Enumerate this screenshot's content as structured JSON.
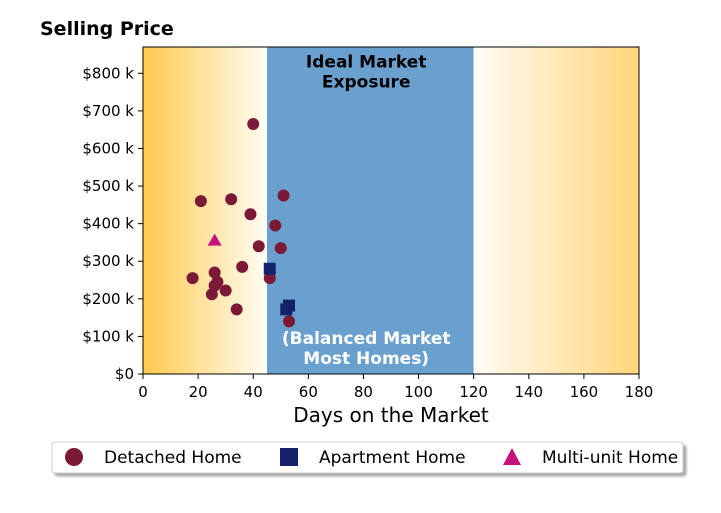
{
  "chart_data": {
    "type": "scatter",
    "title": "Selling Price",
    "xlabel": "Days on the Market",
    "ylabel": "",
    "xlim": [
      0,
      180
    ],
    "ylim": [
      0,
      870000
    ],
    "x_ticks": [
      0,
      20,
      40,
      60,
      80,
      100,
      120,
      140,
      160,
      180
    ],
    "x_tick_labels": [
      "0",
      "20",
      "40",
      "60",
      "80",
      "100",
      "120",
      "140",
      "160",
      "180"
    ],
    "y_ticks": [
      0,
      100000,
      200000,
      300000,
      400000,
      500000,
      600000,
      700000,
      800000
    ],
    "y_tick_labels": [
      "$0",
      "$100 k",
      "$200 k",
      "$300 k",
      "$400 k",
      "$500 k",
      "$600 k",
      "$700 k",
      "$800 k"
    ],
    "grid": false,
    "background_bands": [
      {
        "x_range": [
          0,
          45
        ],
        "style": "gradient",
        "color_from": "#ffc94d",
        "color_to": "#fffdf5"
      },
      {
        "x_range": [
          45,
          120
        ],
        "style": "solid",
        "color": "#6aa0cd"
      },
      {
        "x_range": [
          120,
          180
        ],
        "style": "gradient",
        "color_from": "#fffdf5",
        "color_to": "#ffd57a"
      }
    ],
    "annotations": [
      {
        "line1": "Ideal Market",
        "line2": "Exposure",
        "x": 81,
        "y": 815000,
        "color": "#000000"
      },
      {
        "line1": "(Balanced Market",
        "line2": "Most Homes)",
        "x": 81,
        "y": 80000,
        "color": "#ffffff"
      }
    ],
    "series": [
      {
        "name": "Detached Home",
        "marker": "circle",
        "color": "#7b1a37",
        "points": [
          {
            "x": 40,
            "y": 665000
          },
          {
            "x": 51,
            "y": 475000
          },
          {
            "x": 21,
            "y": 460000
          },
          {
            "x": 32,
            "y": 465000
          },
          {
            "x": 39,
            "y": 425000
          },
          {
            "x": 48,
            "y": 395000
          },
          {
            "x": 42,
            "y": 340000
          },
          {
            "x": 50,
            "y": 335000
          },
          {
            "x": 36,
            "y": 285000
          },
          {
            "x": 26,
            "y": 270000
          },
          {
            "x": 18,
            "y": 255000
          },
          {
            "x": 46,
            "y": 255000
          },
          {
            "x": 27,
            "y": 245000
          },
          {
            "x": 26,
            "y": 235000
          },
          {
            "x": 30,
            "y": 222000
          },
          {
            "x": 25,
            "y": 212000
          },
          {
            "x": 34,
            "y": 172000
          },
          {
            "x": 53,
            "y": 140000
          }
        ]
      },
      {
        "name": "Apartment Home",
        "marker": "square",
        "color": "#14226b",
        "points": [
          {
            "x": 46,
            "y": 280000
          },
          {
            "x": 53,
            "y": 182000
          },
          {
            "x": 52,
            "y": 172000
          }
        ]
      },
      {
        "name": "Multi-unit Home",
        "marker": "triangle",
        "color": "#c4127a",
        "points": [
          {
            "x": 26,
            "y": 355000
          }
        ]
      }
    ],
    "legend_position": "bottom"
  }
}
